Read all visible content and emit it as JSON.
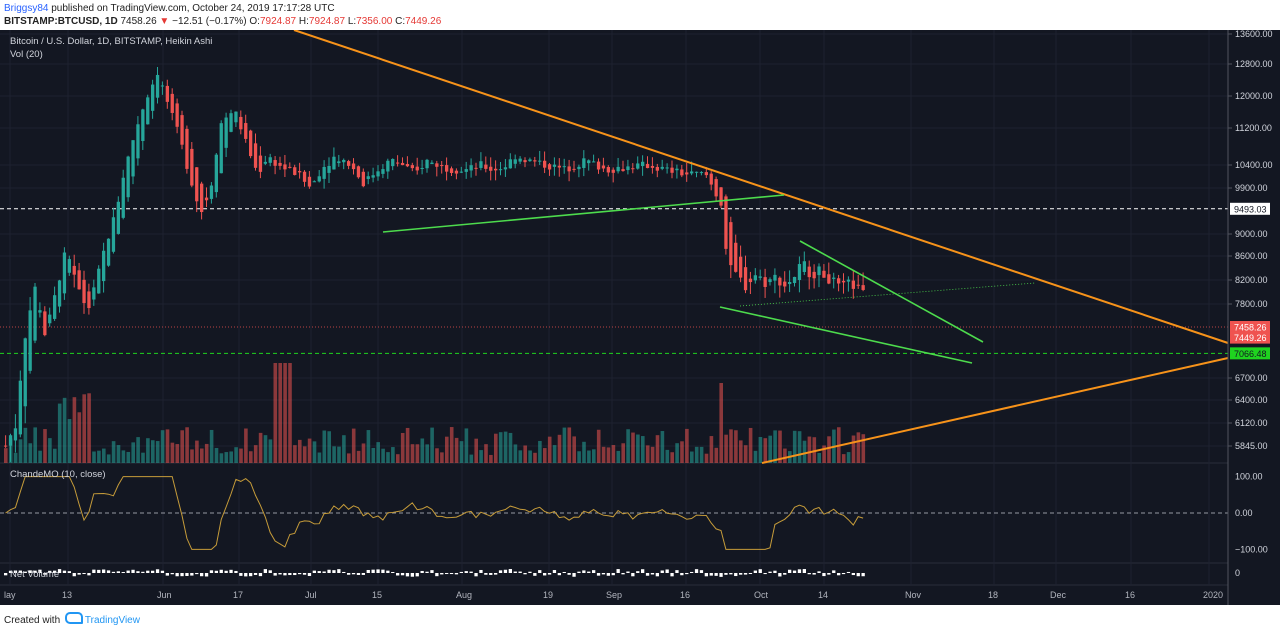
{
  "header": {
    "user": "Briggsy84",
    "published": "published on TradingView.com, October 24, 2019 17:17:28 UTC",
    "symbol": "BITSTAMP:BTCUSD, 1D",
    "price": "7458.26",
    "change_arrow": "▼",
    "change": "−12.51 (−0.17%)",
    "o_label": "O:",
    "o": "7924.87",
    "h_label": "H:",
    "h": "7924.87",
    "l_label": "L:",
    "l": "7356.00",
    "c_label": "C:",
    "c": "7449.26"
  },
  "footer": {
    "created_with": "Created with",
    "brand": "TradingView"
  },
  "colors": {
    "background": "#131722",
    "up": "#26a69a",
    "down": "#ef5350",
    "trend_orange": "#f7931a",
    "trend_green": "#4ddb4d",
    "oscillator": "#c69c3a"
  },
  "chart_data": {
    "type": "candlestick",
    "title": "Bitcoin / U.S. Dollar, 1D, BITSTAMP, Heikin Ashi",
    "volume_label": "Vol (20)",
    "price_axis_ticks": [
      "13600.00",
      "12800.00",
      "12000.00",
      "11200.00",
      "10400.00",
      "9900.00",
      "9000.00",
      "8600.00",
      "8200.00",
      "7800.00",
      "6700.00",
      "6400.00",
      "6120.00",
      "5845.00"
    ],
    "price_axis_values": [
      13600,
      12800,
      12000,
      11200,
      10400,
      9900,
      9000,
      8600,
      8200,
      7800,
      6700,
      6400,
      6120,
      5845
    ],
    "time_axis_labels": [
      "lay",
      "13",
      "Jun",
      "17",
      "Jul",
      "15",
      "Aug",
      "19",
      "Sep",
      "16",
      "Oct",
      "14",
      "Nov",
      "18",
      "Dec",
      "16",
      "2020"
    ],
    "price_labels": [
      {
        "text": "9493.03",
        "value": 9493.03,
        "color": "#ffffff",
        "text_color": "#131722"
      },
      {
        "text": "7458.26",
        "value": 7458.26,
        "color": "#ef5350",
        "text_color": "#ffffff"
      },
      {
        "text": "7449.26",
        "value": 7449.26,
        "color": "#ef5350",
        "text_color": "#ffffff"
      },
      {
        "text": "7066.48",
        "value": 7066.48,
        "color": "#1fd31f",
        "text_color": "#131722"
      }
    ],
    "candles_shown": "daily Heikin Ashi candles, May 2019 – Oct 24 2019",
    "oscillator": {
      "name": "ChandeMO (10, close)",
      "ticks": [
        "100.00",
        "0.00",
        "−100.00"
      ],
      "tick_values": [
        100,
        0,
        -100
      ],
      "range": [
        -110,
        110
      ]
    },
    "net_volume": {
      "name": "Net Volume",
      "ticks": [
        "0"
      ]
    }
  }
}
